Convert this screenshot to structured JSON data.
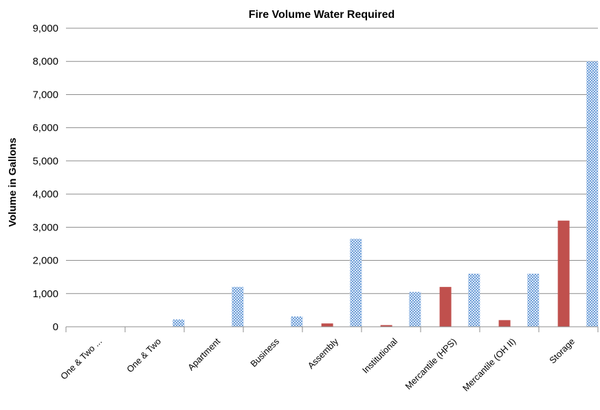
{
  "chart_data": {
    "type": "bar",
    "title": "Fire Volume Water Required",
    "ylabel": "Volume in  Gallons",
    "xlabel": "",
    "ylim": [
      0,
      9000
    ],
    "yticks": [
      "0",
      "1,000",
      "2,000",
      "3,000",
      "4,000",
      "5,000",
      "6,000",
      "7,000",
      "8,000",
      "9,000"
    ],
    "grid": true,
    "categories": [
      "One & Two ...",
      "One & Two",
      "Apartment",
      "Business",
      "Assembly",
      "Institutional",
      "Mercantile (HPS)",
      "Mercantile (OH II)",
      "Storage"
    ],
    "series": [
      {
        "values": [
          0,
          0,
          0,
          0,
          100,
          50,
          1200,
          200,
          3200
        ],
        "color": "#c0504d",
        "pattern": "solid"
      },
      {
        "values": [
          0,
          220,
          1200,
          310,
          2650,
          1050,
          1600,
          1600,
          8000
        ],
        "color": "#8eb4e3",
        "pattern": "checkered"
      }
    ]
  }
}
